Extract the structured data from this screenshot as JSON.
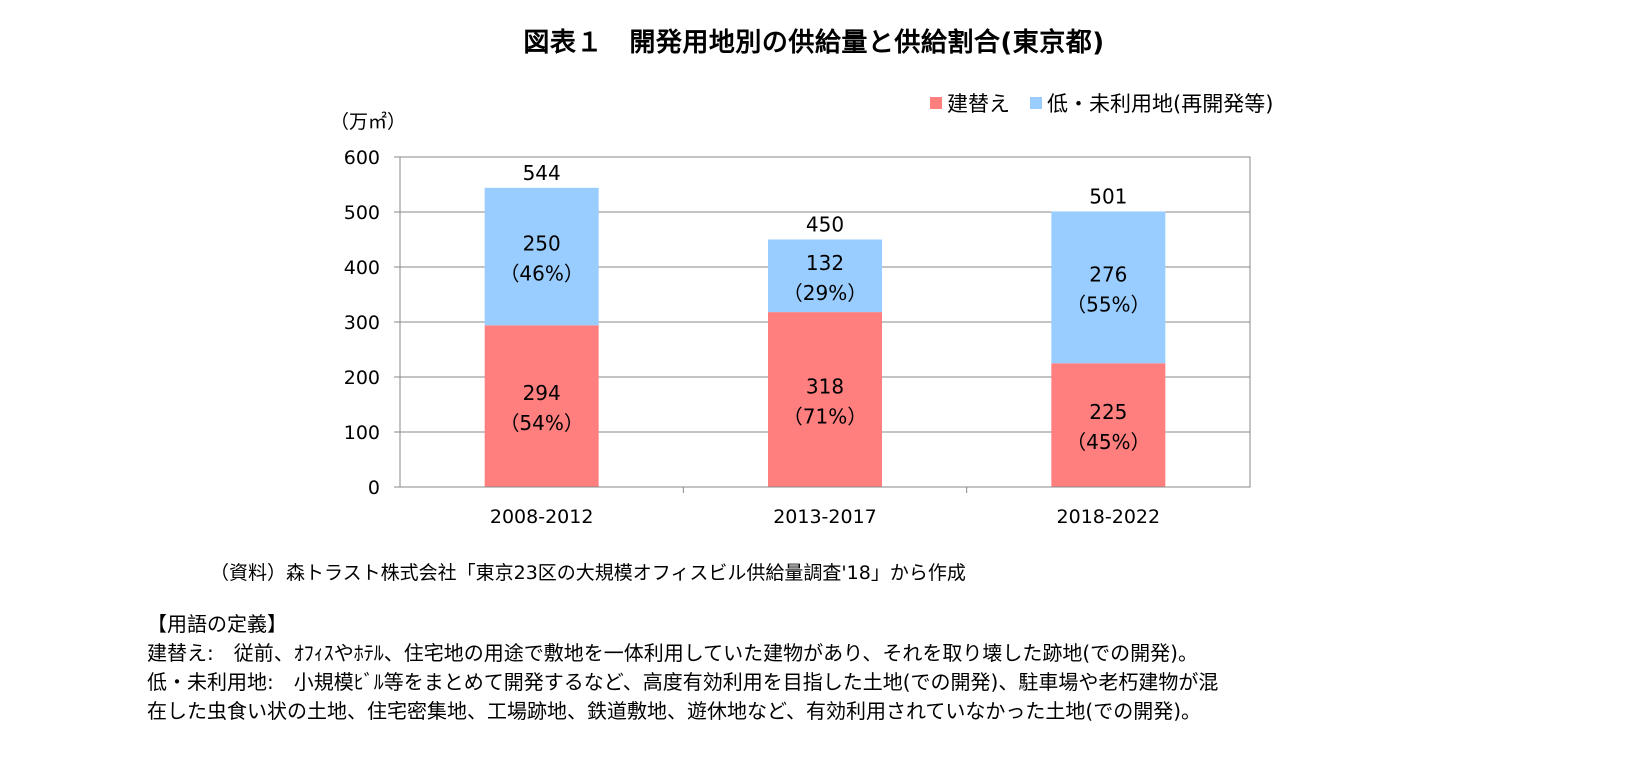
{
  "chart_data": {
    "type": "bar",
    "stacked": true,
    "title": "図表１　開発用地別の供給量と供給割合(東京都)",
    "ylabel": "（万㎡）",
    "xlabel": "",
    "ylim": [
      0,
      600
    ],
    "yticks": [
      "0",
      "100",
      "200",
      "300",
      "400",
      "500",
      "600"
    ],
    "grid": true,
    "legend_position": "top-right",
    "categories": [
      "2008-2012",
      "2013-2017",
      "2018-2022"
    ],
    "series": [
      {
        "name": "建替え",
        "color": "#ff7f7f",
        "values": [
          294,
          318,
          225
        ],
        "value_labels": [
          "294",
          "318",
          "225"
        ],
        "share_labels": [
          "（54%）",
          "（71%）",
          "（45%）"
        ]
      },
      {
        "name": "低・未利用地(再開発等)",
        "color": "#99ccff",
        "values": [
          250,
          132,
          276
        ],
        "value_labels": [
          "250",
          "132",
          "276"
        ],
        "share_labels": [
          "（46%）",
          "（29%）",
          "（55%）"
        ]
      }
    ],
    "totals": [
      544,
      450,
      501
    ],
    "total_labels": [
      "544",
      "450",
      "501"
    ]
  },
  "source_note": "（資料）森トラスト株式会社「東京23区の大規模オフィスビル供給量調査'18」から作成",
  "definitions": {
    "heading": "【用語の定義】",
    "lines": [
      "建替え:　従前、ｵﾌｨｽやﾎﾃﾙ、住宅地の用途で敷地を一体利用していた建物があり、それを取り壊した跡地(での開発)。",
      "低・未利用地:　小規模ﾋﾞﾙ等をまとめて開発するなど、高度有効利用を目指した土地(での開発)、駐車場や老朽建物が混",
      "在した虫食い状の土地、住宅密集地、工場跡地、鉄道敷地、遊休地など、有効利用されていなかった土地(での開発)。"
    ]
  }
}
